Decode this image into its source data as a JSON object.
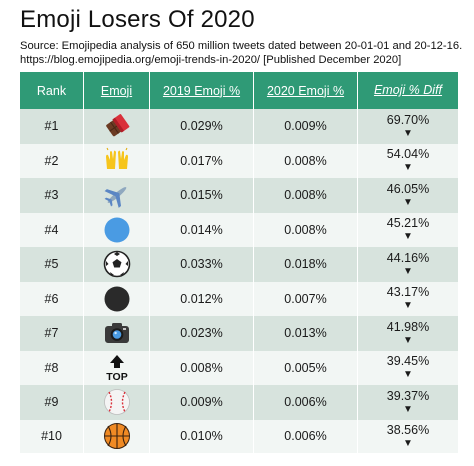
{
  "title": "Emoji Losers Of 2020",
  "source_line1": "Source: Emojipedia analysis of 650 million tweets dated between 20-01-01 and 20-12-16.",
  "source_line2": "https://blog.emojipedia.org/emoji-trends-in-2020/ [Published December 2020]",
  "columns": {
    "rank": "Rank",
    "emoji": "Emoji",
    "pct2019": "2019 Emoji %",
    "pct2020": "2020 Emoji %",
    "diff": "Emoji % Diff"
  },
  "colors": {
    "header_bg": "#2f9a76",
    "row_odd": "#d7e3dd",
    "row_even": "#f2f6f4"
  },
  "arrow_glyph": "▼",
  "chart_data": {
    "type": "table",
    "title": "Emoji Losers Of 2020",
    "headers": [
      "Rank",
      "Emoji",
      "2019 Emoji %",
      "2020 Emoji %",
      "Emoji % Diff"
    ],
    "rows": [
      {
        "rank": "#1",
        "emoji": "chocolate-bar-icon",
        "pct2019": "0.029%",
        "pct2020": "0.009%",
        "diff": "69.70%"
      },
      {
        "rank": "#2",
        "emoji": "raising-hands-icon",
        "pct2019": "0.017%",
        "pct2020": "0.008%",
        "diff": "54.04%"
      },
      {
        "rank": "#3",
        "emoji": "airplane-icon",
        "pct2019": "0.015%",
        "pct2020": "0.008%",
        "diff": "46.05%"
      },
      {
        "rank": "#4",
        "emoji": "blue-circle-icon",
        "pct2019": "0.014%",
        "pct2020": "0.008%",
        "diff": "45.21%"
      },
      {
        "rank": "#5",
        "emoji": "soccer-ball-icon",
        "pct2019": "0.033%",
        "pct2020": "0.018%",
        "diff": "44.16%"
      },
      {
        "rank": "#6",
        "emoji": "black-circle-icon",
        "pct2019": "0.012%",
        "pct2020": "0.007%",
        "diff": "43.17%"
      },
      {
        "rank": "#7",
        "emoji": "camera-icon",
        "pct2019": "0.023%",
        "pct2020": "0.013%",
        "diff": "41.98%"
      },
      {
        "rank": "#8",
        "emoji": "top-arrow-icon",
        "pct2019": "0.008%",
        "pct2020": "0.005%",
        "diff": "39.45%"
      },
      {
        "rank": "#9",
        "emoji": "baseball-icon",
        "pct2019": "0.009%",
        "pct2020": "0.006%",
        "diff": "39.37%"
      },
      {
        "rank": "#10",
        "emoji": "basketball-icon",
        "pct2019": "0.010%",
        "pct2020": "0.006%",
        "diff": "38.56%"
      }
    ]
  }
}
